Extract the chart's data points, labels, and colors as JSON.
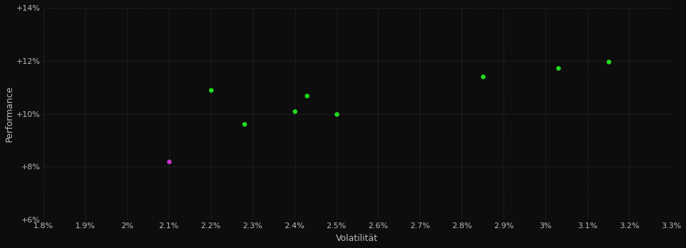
{
  "background_color": "#0d0d0d",
  "plot_bg_color": "#0d0d0d",
  "grid_color": "#2d2d2d",
  "text_color": "#bbbbbb",
  "xlabel": "Volatilität",
  "ylabel": "Performance",
  "xlim": [
    0.018,
    0.033
  ],
  "ylim": [
    0.06,
    0.14
  ],
  "xticks": [
    0.018,
    0.019,
    0.02,
    0.021,
    0.022,
    0.023,
    0.024,
    0.025,
    0.026,
    0.027,
    0.028,
    0.029,
    0.03,
    0.031,
    0.032,
    0.033
  ],
  "yticks": [
    0.06,
    0.08,
    0.1,
    0.12,
    0.14
  ],
  "green_points": [
    [
      0.022,
      0.109
    ],
    [
      0.0228,
      0.0962
    ],
    [
      0.024,
      0.101
    ],
    [
      0.0243,
      0.1068
    ],
    [
      0.025,
      0.0998
    ],
    [
      0.0285,
      0.114
    ],
    [
      0.0303,
      0.1172
    ],
    [
      0.0315,
      0.1198
    ]
  ],
  "magenta_points": [
    [
      0.021,
      0.082
    ]
  ],
  "green_color": "#22dd22",
  "magenta_color": "#cc33cc",
  "marker_size": 22,
  "font_size_ticks": 8,
  "font_size_labels": 9,
  "minor_grid_every": 0.001
}
